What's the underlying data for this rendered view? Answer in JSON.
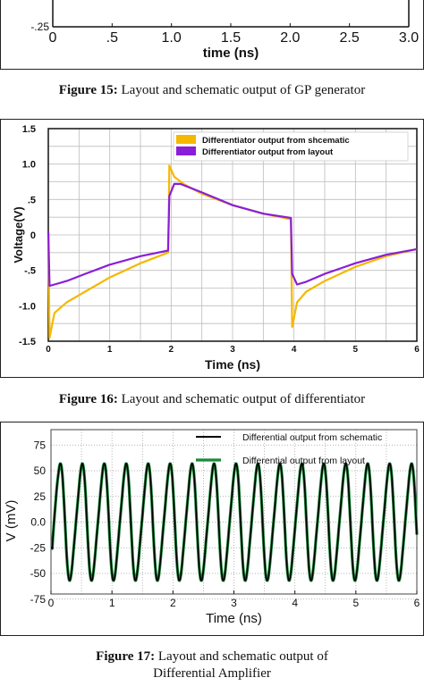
{
  "figure15": {
    "caption_label": "Figure 15:",
    "caption_text": " Layout and schematic output of GP generator",
    "chart_data": {
      "type": "line",
      "xlabel": "time (ns)",
      "x_ticks": [
        "0",
        ".5",
        "1.0",
        "1.5",
        "2.0",
        "2.5",
        "3.0"
      ],
      "y_ticks": [
        "-.25"
      ],
      "xlim": [
        0,
        3.0
      ],
      "ylim": [
        -0.3,
        0.5
      ]
    }
  },
  "figure16": {
    "caption_label": "Figure 16:",
    "caption_text": " Layout and schematic output of differentiator",
    "chart_data": {
      "type": "line",
      "xlabel": "Time (ns)",
      "ylabel": "Voltage(V)",
      "xlim": [
        0,
        6
      ],
      "ylim": [
        -1.5,
        1.5
      ],
      "x_ticks": [
        "0",
        "1",
        "2",
        "3",
        "4",
        "5",
        "6"
      ],
      "y_ticks": [
        "1.5",
        "1.0",
        ".5",
        "0",
        "-.5",
        "-1.0",
        "-1.5"
      ],
      "legend_position": "top-right",
      "series": [
        {
          "name": "Differentiator output from shcematic",
          "color": "#f5b800",
          "x": [
            0,
            0.02,
            0.1,
            0.3,
            0.6,
            1.0,
            1.5,
            1.95,
            1.96,
            1.97,
            2.05,
            2.2,
            2.5,
            3.0,
            3.5,
            3.95,
            3.96,
            3.97,
            4.05,
            4.2,
            4.5,
            5.0,
            5.5,
            6.0
          ],
          "y": [
            0.05,
            -1.45,
            -1.1,
            -0.95,
            -0.8,
            -0.6,
            -0.4,
            -0.25,
            0.2,
            0.98,
            0.82,
            0.72,
            0.58,
            0.42,
            0.3,
            0.22,
            -0.5,
            -1.3,
            -0.95,
            -0.8,
            -0.65,
            -0.45,
            -0.3,
            -0.2
          ]
        },
        {
          "name": "Differentiator output from layout",
          "color": "#8a1ed8",
          "x": [
            0,
            0.02,
            0.1,
            0.3,
            0.6,
            1.0,
            1.5,
            1.95,
            1.97,
            2.05,
            2.15,
            2.5,
            3.0,
            3.5,
            3.95,
            3.97,
            4.05,
            4.2,
            4.5,
            5.0,
            5.5,
            6.0
          ],
          "y": [
            0.05,
            -0.72,
            -0.7,
            -0.65,
            -0.55,
            -0.42,
            -0.3,
            -0.22,
            0.55,
            0.72,
            0.72,
            0.6,
            0.42,
            0.3,
            0.24,
            -0.55,
            -0.7,
            -0.66,
            -0.55,
            -0.4,
            -0.28,
            -0.2
          ]
        }
      ]
    }
  },
  "figure17": {
    "caption_label": "Figure 17:",
    "caption_text": "  Layout and schematic output of",
    "caption_line2": "Differential Amplifier",
    "chart_data": {
      "type": "line",
      "xlabel": "Time (ns)",
      "ylabel": "V  (mV)",
      "xlim": [
        0,
        6
      ],
      "ylim": [
        -70,
        90
      ],
      "x_ticks": [
        "0",
        "1",
        "2",
        "3",
        "4",
        "5",
        "6"
      ],
      "y_ticks": [
        "75",
        "50",
        "25",
        "0.0",
        "-25",
        "-50",
        "-75"
      ],
      "legend_position": "top-right",
      "series": [
        {
          "name": "Differential output from schematic",
          "color": "#000000",
          "period_ns": 0.36,
          "amplitude_mv": 55,
          "peak_mv": 70
        },
        {
          "name": "Differential output from layout",
          "color": "#1a8a3a",
          "period_ns": 0.36,
          "amplitude_mv": 55,
          "peak_mv": 70
        }
      ]
    }
  }
}
